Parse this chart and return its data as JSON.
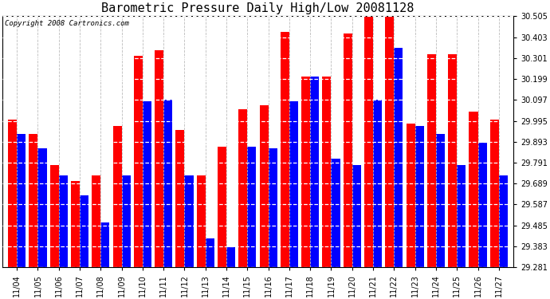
{
  "title": "Barometric Pressure Daily High/Low 20081128",
  "copyright": "Copyright 2008 Cartronics.com",
  "categories": [
    "11/04",
    "11/05",
    "11/06",
    "11/07",
    "11/08",
    "11/09",
    "11/10",
    "11/11",
    "11/12",
    "11/13",
    "11/14",
    "11/15",
    "11/16",
    "11/17",
    "11/18",
    "11/19",
    "11/20",
    "11/21",
    "11/22",
    "11/23",
    "11/24",
    "11/25",
    "11/26",
    "11/27"
  ],
  "highs": [
    30.0,
    29.93,
    29.78,
    29.7,
    29.73,
    29.97,
    30.31,
    30.34,
    29.95,
    29.73,
    29.87,
    30.05,
    30.07,
    30.43,
    30.21,
    30.21,
    30.42,
    30.53,
    30.53,
    29.98,
    30.32,
    30.32,
    30.04,
    30.0
  ],
  "lows": [
    29.93,
    29.86,
    29.73,
    29.63,
    29.5,
    29.73,
    30.09,
    30.1,
    29.73,
    29.42,
    29.38,
    29.87,
    29.86,
    30.09,
    30.21,
    29.81,
    29.78,
    30.1,
    30.35,
    29.97,
    29.93,
    29.78,
    29.89,
    29.73
  ],
  "high_color": "#ff0000",
  "low_color": "#0000ff",
  "bg_color": "#ffffff",
  "grid_color": "#bbbbbb",
  "ylim_min": 29.281,
  "ylim_max": 30.505,
  "yticks": [
    29.281,
    29.383,
    29.485,
    29.587,
    29.689,
    29.791,
    29.893,
    29.995,
    30.097,
    30.199,
    30.301,
    30.403,
    30.505
  ],
  "title_fontsize": 11,
  "tick_fontsize": 7,
  "copyright_fontsize": 6.5
}
